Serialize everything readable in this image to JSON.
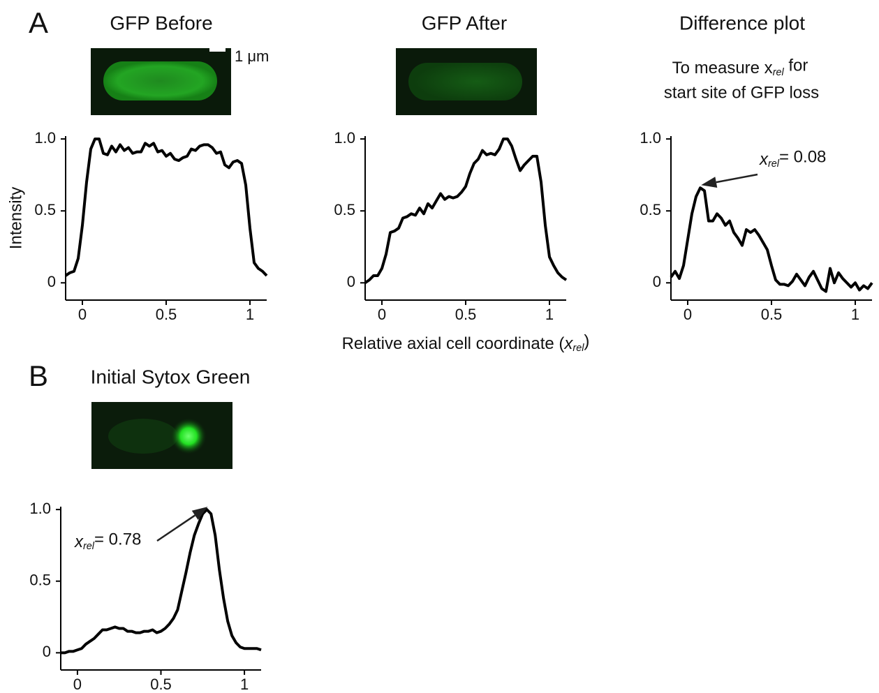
{
  "panels": [
    "A",
    "B"
  ],
  "chart_data": [
    {
      "type": "line",
      "title": "GFP Before",
      "scale_bar": "1 μm",
      "ylabel": "Intensity",
      "color": "#000000",
      "x": [
        -0.1,
        -0.075,
        -0.05,
        -0.025,
        0,
        0.025,
        0.05,
        0.075,
        0.1,
        0.125,
        0.15,
        0.175,
        0.2,
        0.225,
        0.25,
        0.275,
        0.3,
        0.325,
        0.35,
        0.375,
        0.4,
        0.425,
        0.45,
        0.475,
        0.5,
        0.525,
        0.55,
        0.575,
        0.6,
        0.625,
        0.65,
        0.675,
        0.7,
        0.725,
        0.75,
        0.775,
        0.8,
        0.825,
        0.85,
        0.875,
        0.9,
        0.925,
        0.95,
        0.975,
        1,
        1.025,
        1.05,
        1.075,
        1.1
      ],
      "values": [
        0.05,
        0.07,
        0.08,
        0.17,
        0.4,
        0.7,
        0.93,
        1,
        1,
        0.9,
        0.89,
        0.95,
        0.91,
        0.96,
        0.92,
        0.94,
        0.9,
        0.91,
        0.91,
        0.97,
        0.95,
        0.97,
        0.91,
        0.92,
        0.88,
        0.9,
        0.86,
        0.85,
        0.87,
        0.88,
        0.93,
        0.92,
        0.95,
        0.96,
        0.96,
        0.94,
        0.9,
        0.91,
        0.82,
        0.8,
        0.84,
        0.85,
        0.83,
        0.68,
        0.38,
        0.14,
        0.1,
        0.08,
        0.05
      ],
      "xlim": [
        -0.1,
        1.1
      ],
      "ylim": [
        -0.12,
        1.02
      ],
      "xticks": [
        0,
        0.5,
        1
      ],
      "yticks": [
        0,
        0.5,
        {
          "value": 1,
          "label": "1.0"
        }
      ]
    },
    {
      "type": "line",
      "title": "GFP After",
      "color": "#000000",
      "xlabel": {
        "text": "Relative axial cell coordinate (",
        "symbol": "x",
        "subscript": "rel",
        "end": ")"
      },
      "x": [
        -0.1,
        -0.075,
        -0.05,
        -0.025,
        0,
        0.025,
        0.05,
        0.075,
        0.1,
        0.125,
        0.15,
        0.175,
        0.2,
        0.225,
        0.25,
        0.275,
        0.3,
        0.325,
        0.35,
        0.375,
        0.4,
        0.425,
        0.45,
        0.475,
        0.5,
        0.525,
        0.55,
        0.575,
        0.6,
        0.625,
        0.65,
        0.675,
        0.7,
        0.725,
        0.75,
        0.775,
        0.8,
        0.825,
        0.85,
        0.875,
        0.9,
        0.925,
        0.95,
        0.975,
        1,
        1.025,
        1.05,
        1.075,
        1.1
      ],
      "values": [
        0,
        0.02,
        0.05,
        0.05,
        0.1,
        0.2,
        0.35,
        0.36,
        0.38,
        0.45,
        0.46,
        0.48,
        0.47,
        0.52,
        0.48,
        0.55,
        0.52,
        0.57,
        0.62,
        0.58,
        0.6,
        0.59,
        0.6,
        0.63,
        0.67,
        0.76,
        0.83,
        0.86,
        0.92,
        0.89,
        0.9,
        0.89,
        0.93,
        1,
        1,
        0.95,
        0.86,
        0.78,
        0.82,
        0.85,
        0.88,
        0.88,
        0.7,
        0.4,
        0.18,
        0.12,
        0.07,
        0.04,
        0.02
      ],
      "xlim": [
        -0.1,
        1.1
      ],
      "ylim": [
        -0.12,
        1.02
      ],
      "xticks": [
        0,
        0.5,
        1
      ],
      "yticks": [
        0,
        0.5,
        {
          "value": 1,
          "label": "1.0"
        }
      ]
    },
    {
      "type": "line",
      "title": "Difference plot",
      "color": "#000000",
      "subtitle": {
        "text": "To measure x",
        "subscript": "rel",
        "end": " for",
        "line2": "start site of GFP loss"
      },
      "annotation": {
        "symbol": "x",
        "subscript": "rel",
        "value": 0.08,
        "label": "= 0.08"
      },
      "x": [
        -0.1,
        -0.075,
        -0.05,
        -0.025,
        0,
        0.025,
        0.05,
        0.075,
        0.1,
        0.125,
        0.15,
        0.175,
        0.2,
        0.225,
        0.25,
        0.275,
        0.3,
        0.325,
        0.35,
        0.375,
        0.4,
        0.425,
        0.45,
        0.475,
        0.5,
        0.525,
        0.55,
        0.575,
        0.6,
        0.625,
        0.65,
        0.675,
        0.7,
        0.725,
        0.75,
        0.775,
        0.8,
        0.825,
        0.85,
        0.875,
        0.9,
        0.925,
        0.95,
        0.975,
        1,
        1.025,
        1.05,
        1.075,
        1.1
      ],
      "values": [
        0.04,
        0.08,
        0.03,
        0.12,
        0.3,
        0.48,
        0.6,
        0.66,
        0.64,
        0.43,
        0.43,
        0.48,
        0.45,
        0.4,
        0.43,
        0.35,
        0.31,
        0.26,
        0.37,
        0.35,
        0.37,
        0.33,
        0.28,
        0.23,
        0.12,
        0.02,
        -0.01,
        -0.01,
        -0.02,
        0.01,
        0.06,
        0.02,
        -0.02,
        0.04,
        0.08,
        0.02,
        -0.04,
        -0.06,
        0.1,
        0,
        0.07,
        0.03,
        0,
        -0.03,
        0,
        -0.05,
        -0.02,
        -0.04,
        0
      ],
      "xlim": [
        -0.1,
        1.1
      ],
      "ylim": [
        -0.12,
        1.02
      ],
      "xticks": [
        0,
        0.5,
        1
      ],
      "yticks": [
        0,
        0.5,
        {
          "value": 1,
          "label": "1.0"
        }
      ]
    },
    {
      "type": "line",
      "title": "Initial Sytox Green",
      "color": "#000000",
      "annotation": {
        "symbol": "x",
        "subscript": "rel",
        "value": 0.78,
        "label": "= 0.78"
      },
      "x": [
        -0.1,
        -0.075,
        -0.05,
        -0.025,
        0,
        0.025,
        0.05,
        0.075,
        0.1,
        0.125,
        0.15,
        0.175,
        0.2,
        0.225,
        0.25,
        0.275,
        0.3,
        0.325,
        0.35,
        0.375,
        0.4,
        0.425,
        0.45,
        0.475,
        0.5,
        0.525,
        0.55,
        0.575,
        0.6,
        0.625,
        0.65,
        0.675,
        0.7,
        0.725,
        0.75,
        0.775,
        0.8,
        0.825,
        0.85,
        0.875,
        0.9,
        0.925,
        0.95,
        0.975,
        1,
        1.025,
        1.05,
        1.075,
        1.1
      ],
      "values": [
        0,
        0,
        0.01,
        0.01,
        0.02,
        0.03,
        0.06,
        0.08,
        0.1,
        0.13,
        0.16,
        0.16,
        0.17,
        0.18,
        0.17,
        0.17,
        0.15,
        0.15,
        0.14,
        0.14,
        0.15,
        0.15,
        0.16,
        0.14,
        0.15,
        0.17,
        0.2,
        0.24,
        0.3,
        0.43,
        0.56,
        0.7,
        0.82,
        0.9,
        0.97,
        1,
        0.97,
        0.82,
        0.58,
        0.38,
        0.22,
        0.12,
        0.07,
        0.04,
        0.03,
        0.03,
        0.03,
        0.03,
        0.02
      ],
      "xlim": [
        -0.1,
        1.1
      ],
      "ylim": [
        -0.12,
        1.02
      ],
      "xticks": [
        0,
        0.5,
        1
      ],
      "yticks": [
        0,
        0.5,
        {
          "value": 1,
          "label": "1.0"
        }
      ]
    }
  ]
}
